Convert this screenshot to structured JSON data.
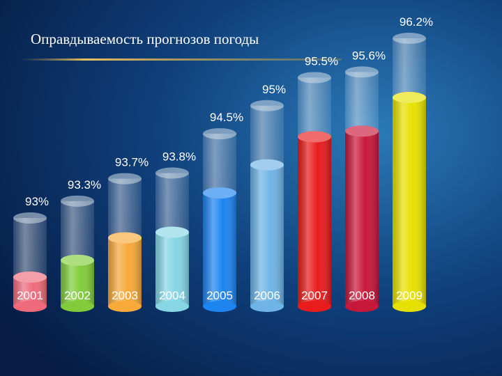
{
  "chart_data": {
    "type": "bar",
    "title": "Оправдываемость прогнозов погоды",
    "categories": [
      "2001",
      "2002",
      "2003",
      "2004",
      "2005",
      "2006",
      "2007",
      "2008",
      "2009"
    ],
    "values": [
      93,
      93.3,
      93.7,
      93.8,
      94.5,
      95,
      95.5,
      95.6,
      96.2
    ],
    "value_labels": [
      "93%",
      "93.3%",
      "93.7%",
      "93.8%",
      "94.5%",
      "95%",
      "95.5%",
      "95.6%",
      "96.2%"
    ],
    "colors": [
      "#ef6b7c",
      "#82cc3c",
      "#f7a93a",
      "#86d6e6",
      "#1e84f0",
      "#6fb4e6",
      "#e81c1c",
      "#c8183a",
      "#e6e000"
    ]
  }
}
